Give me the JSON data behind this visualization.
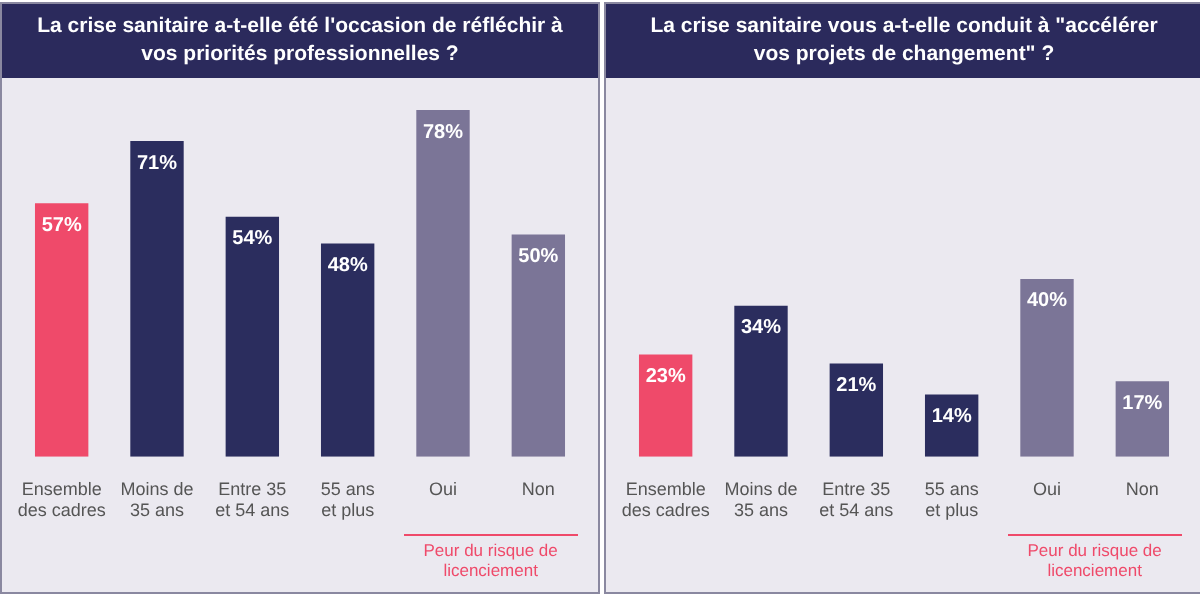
{
  "chart_data": [
    {
      "type": "bar",
      "title": "La crise sanitaire a-t-elle été l'occasion de réfléchir à vos priorités professionnelles ?",
      "categories": [
        "Ensemble des cadres",
        "Moins de 35 ans",
        "Entre 35 et 54 ans",
        "55 ans et plus",
        "Oui",
        "Non"
      ],
      "values": [
        57,
        71,
        54,
        48,
        78,
        50
      ],
      "colors": [
        "#ef4a6a",
        "#2b2d5e",
        "#2b2d5e",
        "#2b2d5e",
        "#7b7597",
        "#7b7597"
      ],
      "value_labels": [
        "57%",
        "71%",
        "54%",
        "48%",
        "78%",
        "50%"
      ],
      "tick_labels": "x",
      "grid": false,
      "legend": false,
      "annotations": [
        "Peur du risque de licenciement"
      ]
    },
    {
      "type": "bar",
      "title": "La crise sanitaire vous a-t-elle conduit à \"accélérer vos projets de changement\" ?",
      "categories": [
        "Ensemble des cadres",
        "Moins de 35 ans",
        "Entre 35 et 54 ans",
        "55 ans et plus",
        "Oui",
        "Non"
      ],
      "values": [
        23,
        34,
        21,
        14,
        40,
        17
      ],
      "colors": [
        "#ef4a6a",
        "#2b2d5e",
        "#2b2d5e",
        "#2b2d5e",
        "#7b7597",
        "#7b7597"
      ],
      "value_labels": [
        "23%",
        "34%",
        "21%",
        "14%",
        "40%",
        "17%"
      ],
      "tick_labels": "x",
      "grid": false,
      "legend": false,
      "annotations": [
        "Peur du risque de licenciement"
      ]
    }
  ]
}
